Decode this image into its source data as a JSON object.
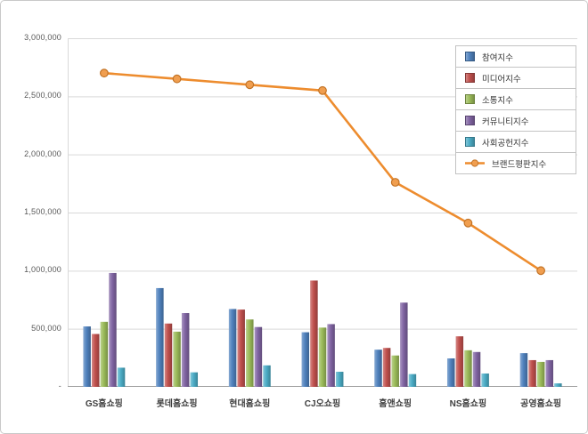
{
  "chart_data": {
    "type": "bar+line",
    "title": "",
    "categories": [
      "GS홈쇼핑",
      "롯데홈쇼핑",
      "현대홈쇼핑",
      "CJ오쇼핑",
      "홈앤쇼핑",
      "NS홈쇼핑",
      "공영홈쇼핑"
    ],
    "bar_series": [
      {
        "name": "참여지수",
        "color": "#4F81BD",
        "values": [
          520000,
          850000,
          670000,
          470000,
          320000,
          245000,
          290000
        ]
      },
      {
        "name": "미디어지수",
        "color": "#C0504D",
        "values": [
          455000,
          545000,
          665000,
          915000,
          335000,
          435000,
          230000
        ]
      },
      {
        "name": "소통지수",
        "color": "#9BBB59",
        "values": [
          560000,
          475000,
          580000,
          510000,
          270000,
          315000,
          215000
        ]
      },
      {
        "name": "커뮤니티지수",
        "color": "#8064A2",
        "values": [
          980000,
          635000,
          515000,
          540000,
          725000,
          300000,
          230000
        ]
      },
      {
        "name": "사회공헌지수",
        "color": "#4BACC6",
        "values": [
          165000,
          125000,
          185000,
          130000,
          110000,
          115000,
          30000
        ]
      }
    ],
    "line_series": {
      "name": "브랜드평판지수",
      "color": "#ED8C2E",
      "values": [
        2700000,
        2650000,
        2600000,
        2550000,
        1760000,
        1410000,
        1000000
      ]
    },
    "ylim": [
      0,
      3000000
    ],
    "ytick_step": 500000,
    "ytick_labels": [
      "-",
      "500,000",
      "1,000,000",
      "1,500,000",
      "2,000,000",
      "2,500,000",
      "3,000,000"
    ],
    "grid": true,
    "legend_position": "top-right"
  },
  "colors": {
    "grid": "#d9d9d9",
    "axis": "#9e9e9e",
    "tick_text": "#595959",
    "category_text": "#3f3f3f",
    "legend_border": "#c3c3c3",
    "frame_border": "#c9c9c9"
  }
}
